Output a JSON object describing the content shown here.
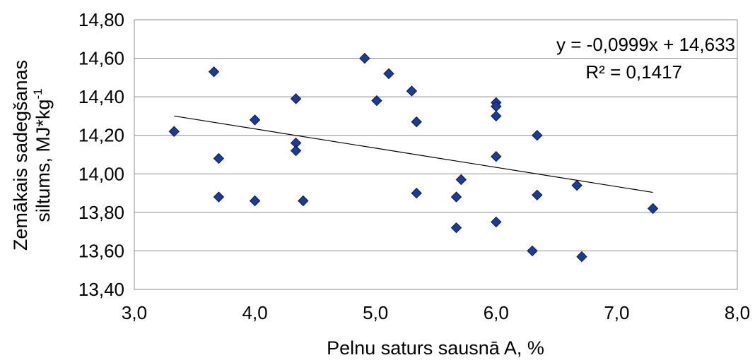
{
  "chart_data": {
    "type": "scatter",
    "xlabel": "Pelnu saturs sausnā A, %",
    "ylabel_line1": "Zemākais sadegšanas",
    "ylabel_line2": "siltums, MJ*kg",
    "ylabel_sup": "-1",
    "xlim": [
      3.0,
      8.0
    ],
    "ylim": [
      13.4,
      14.8
    ],
    "x_ticks": [
      {
        "value": 3.0,
        "label": "3,0"
      },
      {
        "value": 4.0,
        "label": "4,0"
      },
      {
        "value": 5.0,
        "label": "5,0"
      },
      {
        "value": 6.0,
        "label": "6,0"
      },
      {
        "value": 7.0,
        "label": "7,0"
      },
      {
        "value": 8.0,
        "label": "8,0"
      }
    ],
    "y_ticks": [
      {
        "value": 13.4,
        "label": "13,40"
      },
      {
        "value": 13.6,
        "label": "13,60"
      },
      {
        "value": 13.8,
        "label": "13,80"
      },
      {
        "value": 14.0,
        "label": "14,00"
      },
      {
        "value": 14.2,
        "label": "14,20"
      },
      {
        "value": 14.4,
        "label": "14,40"
      },
      {
        "value": 14.6,
        "label": "14,60"
      },
      {
        "value": 14.8,
        "label": "14,80"
      }
    ],
    "grid": "horizontal",
    "marker_color": "#1f3a93",
    "trendline_color": "#000000",
    "points": [
      {
        "x": 3.33,
        "y": 14.22
      },
      {
        "x": 3.66,
        "y": 14.53
      },
      {
        "x": 3.7,
        "y": 14.08
      },
      {
        "x": 3.7,
        "y": 13.88
      },
      {
        "x": 4.0,
        "y": 14.28
      },
      {
        "x": 4.0,
        "y": 13.86
      },
      {
        "x": 4.34,
        "y": 14.39
      },
      {
        "x": 4.34,
        "y": 14.16
      },
      {
        "x": 4.34,
        "y": 14.12
      },
      {
        "x": 4.4,
        "y": 13.86
      },
      {
        "x": 4.91,
        "y": 14.6
      },
      {
        "x": 5.01,
        "y": 14.38
      },
      {
        "x": 5.11,
        "y": 14.52
      },
      {
        "x": 5.3,
        "y": 14.43
      },
      {
        "x": 5.34,
        "y": 14.27
      },
      {
        "x": 5.34,
        "y": 13.9
      },
      {
        "x": 5.67,
        "y": 13.88
      },
      {
        "x": 5.67,
        "y": 13.72
      },
      {
        "x": 5.71,
        "y": 13.97
      },
      {
        "x": 6.0,
        "y": 14.37
      },
      {
        "x": 6.0,
        "y": 14.35
      },
      {
        "x": 6.0,
        "y": 14.3
      },
      {
        "x": 6.0,
        "y": 14.09
      },
      {
        "x": 6.0,
        "y": 13.75
      },
      {
        "x": 6.3,
        "y": 13.6
      },
      {
        "x": 6.34,
        "y": 14.2
      },
      {
        "x": 6.34,
        "y": 13.89
      },
      {
        "x": 6.67,
        "y": 13.94
      },
      {
        "x": 6.71,
        "y": 13.57
      },
      {
        "x": 7.3,
        "y": 13.82
      }
    ],
    "trendline": {
      "slope": -0.0999,
      "intercept": 14.633,
      "x_start": 3.33,
      "x_end": 7.3
    },
    "annotations": {
      "equation": "y = -0,0999x + 14,633",
      "r_squared": "R² = 0,1417"
    }
  }
}
